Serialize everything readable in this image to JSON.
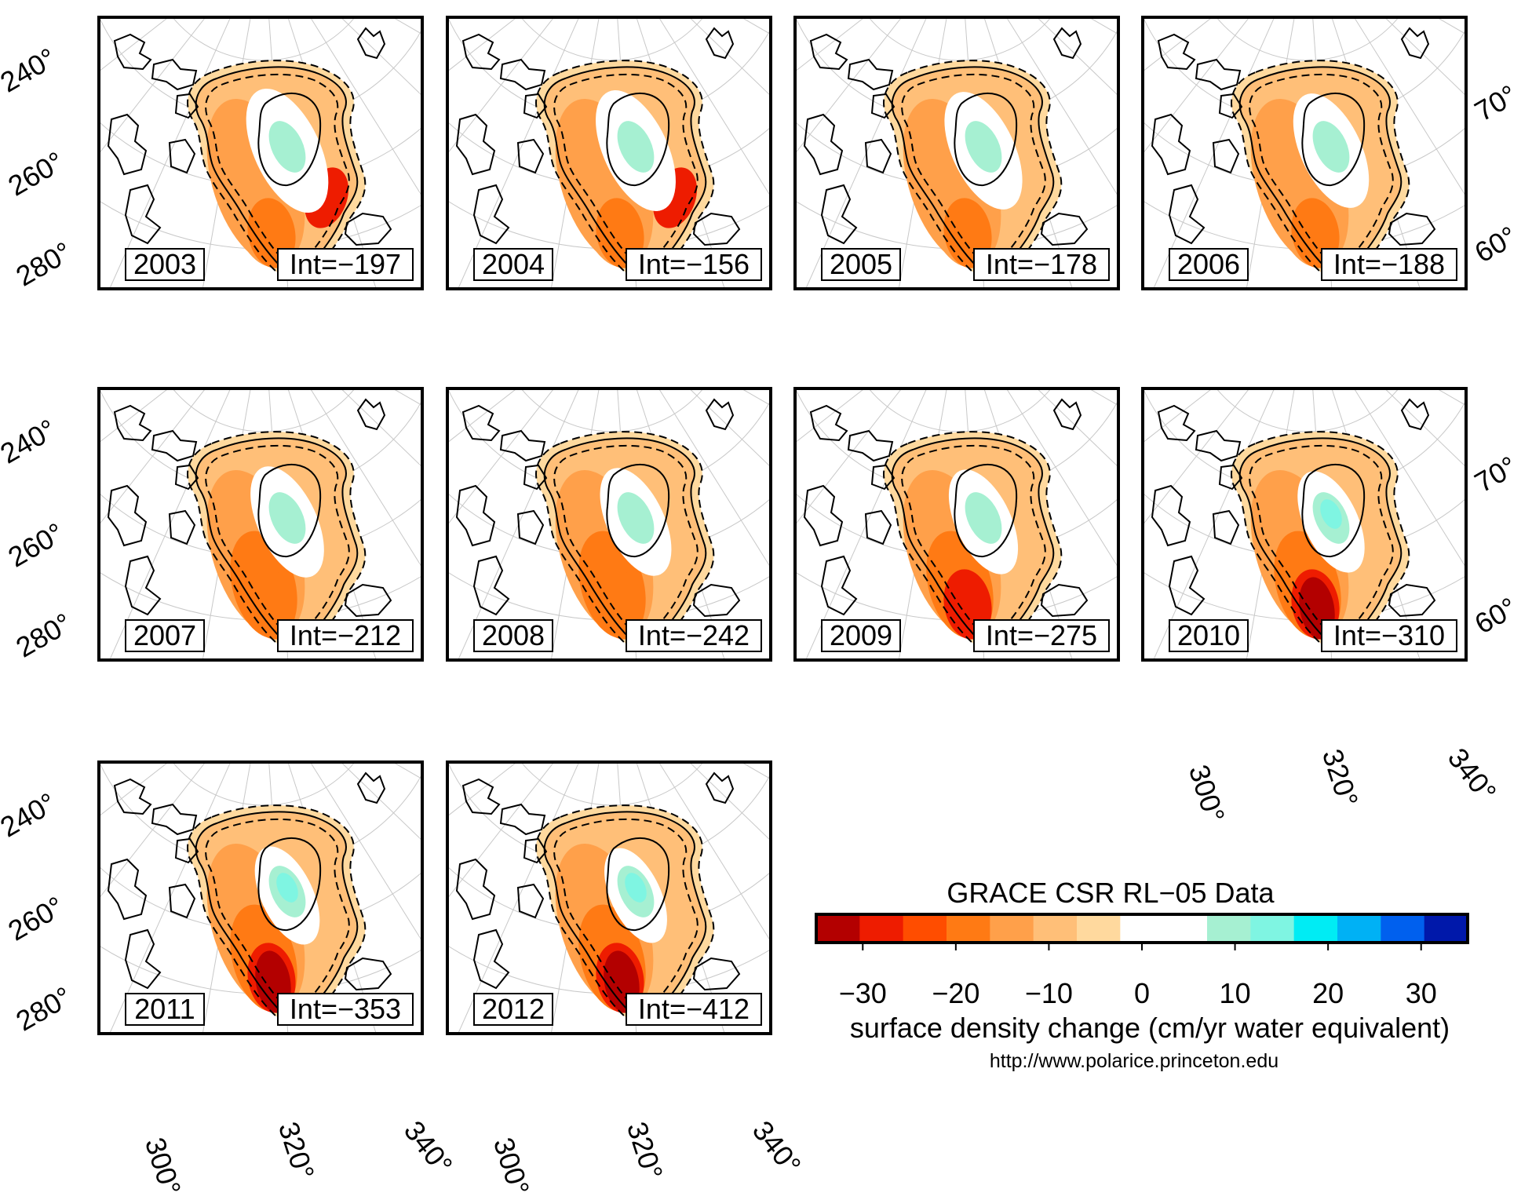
{
  "figure": {
    "panels": [
      {
        "year": "2003",
        "int_label": "Int=−197"
      },
      {
        "year": "2004",
        "int_label": "Int=−156"
      },
      {
        "year": "2005",
        "int_label": "Int=−178"
      },
      {
        "year": "2006",
        "int_label": "Int=−188"
      },
      {
        "year": "2007",
        "int_label": "Int=−212"
      },
      {
        "year": "2008",
        "int_label": "Int=−242"
      },
      {
        "year": "2009",
        "int_label": "Int=−275"
      },
      {
        "year": "2010",
        "int_label": "Int=−310"
      },
      {
        "year": "2011",
        "int_label": "Int=−353"
      },
      {
        "year": "2012",
        "int_label": "Int=−412"
      }
    ],
    "longitude_labels_left": [
      "240°",
      "260°",
      "280°"
    ],
    "latitude_labels_right": [
      "70°",
      "60°"
    ],
    "longitude_labels_bottom": [
      "300°",
      "320°",
      "340°"
    ]
  },
  "colorbar": {
    "title": "GRACE CSR RL−05 Data",
    "tick_labels": [
      "−30",
      "−20",
      "−10",
      "0",
      "10",
      "20",
      "30"
    ],
    "tick_values": [
      -30,
      -20,
      -10,
      0,
      10,
      20,
      30
    ],
    "range": [
      -35,
      35
    ],
    "colors": [
      "#b30000",
      "#ee1c00",
      "#ff4d00",
      "#ff7a14",
      "#ffa04a",
      "#ffbf78",
      "#ffd99e",
      "#ffffff",
      "#ffffff",
      "#a6f0d2",
      "#7ff5e2",
      "#00ecf4",
      "#00b1f5",
      "#0060ee",
      "#0018aa"
    ],
    "unit_label": "surface density change (cm/yr water equivalent)",
    "url": "http://www.polarice.princeton.edu"
  }
}
